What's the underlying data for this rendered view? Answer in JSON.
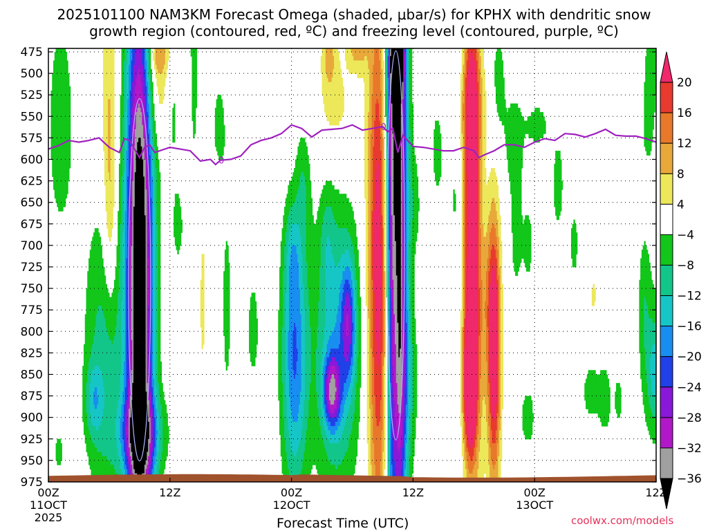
{
  "title_line1": "2025101100 NAM3KM Forecast Omega (shaded, μbar/s) for KPHX with dendritic snow",
  "title_line2": "growth region (contoured, red, ºC) and freezing level (contoured, purple, ºC)",
  "credit": "coolwx.com/models",
  "chart_data": {
    "type": "heatmap",
    "title": "2025101100 NAM3KM Forecast Omega (shaded, μbar/s) for KPHX with dendritic snow growth region (contoured, red, ºC) and freezing level (contoured, purple, ºC)",
    "xlabel": "Forecast Time (UTC)",
    "ylabel": "",
    "x_range_hours": [
      0,
      60
    ],
    "y_range_mb": [
      475,
      975
    ],
    "y_ticks": [
      475,
      500,
      525,
      550,
      575,
      600,
      625,
      650,
      675,
      700,
      725,
      750,
      775,
      800,
      825,
      850,
      875,
      900,
      925,
      950,
      975
    ],
    "x_ticks": [
      {
        "hour": 0,
        "lines": [
          "00Z",
          "11OCT",
          "2025"
        ]
      },
      {
        "hour": 12,
        "lines": [
          "12Z"
        ]
      },
      {
        "hour": 24,
        "lines": [
          "00Z",
          "12OCT"
        ]
      },
      {
        "hour": 36,
        "lines": [
          "12Z"
        ]
      },
      {
        "hour": 48,
        "lines": [
          "00Z",
          "13OCT"
        ]
      },
      {
        "hour": 60,
        "lines": [
          "12Z"
        ]
      }
    ],
    "colorbar": {
      "ticks": [
        "20",
        "16",
        "12",
        "8",
        "4",
        "−4",
        "−8",
        "−12",
        "−16",
        "−20",
        "−24",
        "−28",
        "−32",
        "−36"
      ],
      "bins": [
        {
          "range": [
            20,
            24
          ],
          "color": "#f0286c"
        },
        {
          "range": [
            16,
            20
          ],
          "color": "#e83a2e"
        },
        {
          "range": [
            12,
            16
          ],
          "color": "#e8782a"
        },
        {
          "range": [
            8,
            12
          ],
          "color": "#e8a83a"
        },
        {
          "range": [
            4,
            8
          ],
          "color": "#ece85a"
        },
        {
          "range": [
            -4,
            4
          ],
          "color": "#ffffff"
        },
        {
          "range": [
            -8,
            -4
          ],
          "color": "#12c61a"
        },
        {
          "range": [
            -12,
            -8
          ],
          "color": "#12c68a"
        },
        {
          "range": [
            -16,
            -12
          ],
          "color": "#16c6c6"
        },
        {
          "range": [
            -20,
            -16
          ],
          "color": "#188ef0"
        },
        {
          "range": [
            -24,
            -20
          ],
          "color": "#2040e8"
        },
        {
          "range": [
            -28,
            -24
          ],
          "color": "#8a18d8"
        },
        {
          "range": [
            -32,
            -28
          ],
          "color": "#b018c8"
        },
        {
          "range": [
            -36,
            -32
          ],
          "color": "#a0a0a0"
        },
        {
          "range": [
            -40,
            -36
          ],
          "color": "#000000"
        }
      ]
    },
    "freezing_level_mb": {
      "hours": [
        0,
        1,
        2,
        3,
        4,
        5,
        6,
        7,
        7.5,
        8,
        9,
        9.5,
        10,
        10.5,
        11,
        12,
        13,
        14,
        15,
        16,
        16.5,
        17,
        18,
        19,
        20,
        21,
        22,
        23,
        24,
        25,
        26,
        27,
        28,
        29,
        30,
        31,
        32,
        33,
        33.5,
        34,
        34.5,
        35,
        36,
        37,
        38,
        39,
        40,
        41,
        42,
        42.5,
        43,
        44,
        45,
        46,
        47,
        48,
        49,
        50,
        51,
        52,
        53,
        54,
        55,
        56,
        57,
        58,
        59,
        60
      ],
      "pressure": [
        588,
        584,
        578,
        580,
        578,
        575,
        586,
        592,
        576,
        578,
        598,
        586,
        583,
        592,
        590,
        586,
        588,
        590,
        602,
        600,
        606,
        601,
        600,
        596,
        583,
        578,
        575,
        570,
        560,
        564,
        574,
        566,
        565,
        564,
        560,
        566,
        564,
        562,
        568,
        564,
        592,
        572,
        585,
        586,
        588,
        590,
        590,
        586,
        590,
        598,
        595,
        590,
        583,
        583,
        586,
        580,
        576,
        578,
        570,
        571,
        574,
        570,
        565,
        572,
        573,
        573,
        576,
        580
      ],
      "label": "0",
      "label_hours": [
        17,
        33
      ]
    },
    "omega_features": [
      {
        "center": [
          9,
          740
        ],
        "sx": 0.95,
        "sy": 270,
        "peak": -44
      },
      {
        "center": [
          9.1,
          920
        ],
        "sx": 1.6,
        "sy": 35,
        "peak": -16
      },
      {
        "center": [
          10.8,
          520
        ],
        "sx": 0.9,
        "sy": 45,
        "peak": 9
      },
      {
        "center": [
          10.8,
          475
        ],
        "sx": 0.8,
        "sy": 20,
        "peak": 10
      },
      {
        "center": [
          6,
          560
        ],
        "sx": 0.55,
        "sy": 120,
        "peak": 9
      },
      {
        "center": [
          6.1,
          680
        ],
        "sx": 0.4,
        "sy": 60,
        "peak": 5
      },
      {
        "center": [
          1.2,
          560
        ],
        "sx": 1.1,
        "sy": 110,
        "peak": -6
      },
      {
        "center": [
          5.5,
          830
        ],
        "sx": 1.4,
        "sy": 130,
        "peak": -10
      },
      {
        "center": [
          4.5,
          880
        ],
        "sx": 0.6,
        "sy": 30,
        "peak": -9
      },
      {
        "center": [
          12.2,
          540
        ],
        "sx": 0.6,
        "sy": 60,
        "peak": -6
      },
      {
        "center": [
          12.8,
          680
        ],
        "sx": 0.5,
        "sy": 40,
        "peak": -5
      },
      {
        "center": [
          14.4,
          430
        ],
        "sx": 0.35,
        "sy": 180,
        "peak": -6
      },
      {
        "center": [
          15.2,
          760
        ],
        "sx": 0.45,
        "sy": 130,
        "peak": 4.5
      },
      {
        "center": [
          16.8,
          560
        ],
        "sx": 0.6,
        "sy": 50,
        "peak": -5
      },
      {
        "center": [
          17.6,
          770
        ],
        "sx": 0.45,
        "sy": 110,
        "peak": -5
      },
      {
        "center": [
          20.2,
          800
        ],
        "sx": 0.6,
        "sy": 70,
        "peak": -5
      },
      {
        "center": [
          20.7,
          900
        ],
        "sx": 0.5,
        "sy": 25,
        "peak": 4.5
      },
      {
        "center": [
          25.2,
          630
        ],
        "sx": 0.5,
        "sy": 50,
        "peak": -6
      },
      {
        "center": [
          24.3,
          830
        ],
        "sx": 0.9,
        "sy": 110,
        "peak": -20
      },
      {
        "center": [
          24.1,
          710
        ],
        "sx": 0.55,
        "sy": 40,
        "peak": -6
      },
      {
        "center": [
          28.5,
          820
        ],
        "sx": 1.6,
        "sy": 120,
        "peak": -15
      },
      {
        "center": [
          28.0,
          870
        ],
        "sx": 0.6,
        "sy": 30,
        "peak": -22
      },
      {
        "center": [
          29.6,
          790
        ],
        "sx": 0.5,
        "sy": 50,
        "peak": -17
      },
      {
        "center": [
          27.5,
          690
        ],
        "sx": 0.5,
        "sy": 45,
        "peak": -5
      },
      {
        "center": [
          28.3,
          540
        ],
        "sx": 1.3,
        "sy": 50,
        "peak": 6
      },
      {
        "center": [
          27.7,
          475
        ],
        "sx": 0.5,
        "sy": 30,
        "peak": 8
      },
      {
        "center": [
          30.5,
          470
        ],
        "sx": 0.7,
        "sy": 20,
        "peak": 10
      },
      {
        "center": [
          32.8,
          720
        ],
        "sx": 0.85,
        "sy": 230,
        "peak": 28
      },
      {
        "center": [
          34.1,
          520
        ],
        "sx": 0.7,
        "sy": 50,
        "peak": -6
      },
      {
        "center": [
          33.7,
          640
        ],
        "sx": 0.5,
        "sy": 80,
        "peak": -5
      },
      {
        "center": [
          34.3,
          740
        ],
        "sx": 0.25,
        "sy": 200,
        "peak": 8
      },
      {
        "center": [
          34.3,
          700
        ],
        "sx": 0.75,
        "sy": 290,
        "peak": -48
      },
      {
        "center": [
          34.4,
          480
        ],
        "sx": 0.5,
        "sy": 30,
        "peak": -26
      },
      {
        "center": [
          35.6,
          860
        ],
        "sx": 0.7,
        "sy": 60,
        "peak": -6
      },
      {
        "center": [
          36.2,
          650
        ],
        "sx": 0.4,
        "sy": 40,
        "peak": -5
      },
      {
        "center": [
          38.4,
          590
        ],
        "sx": 0.6,
        "sy": 60,
        "peak": -5
      },
      {
        "center": [
          40.3,
          640
        ],
        "sx": 0.6,
        "sy": 230,
        "peak": -5
      },
      {
        "center": [
          41.8,
          630
        ],
        "sx": 0.6,
        "sy": 190,
        "peak": 26
      },
      {
        "center": [
          41.6,
          540
        ],
        "sx": 1.2,
        "sy": 40,
        "peak": 6
      },
      {
        "center": [
          44.4,
          510
        ],
        "sx": 0.5,
        "sy": 50,
        "peak": -6
      },
      {
        "center": [
          43.4,
          750
        ],
        "sx": 0.5,
        "sy": 60,
        "peak": 4.5
      },
      {
        "center": [
          44.0,
          820
        ],
        "sx": 0.45,
        "sy": 110,
        "peak": 26
      },
      {
        "center": [
          41.6,
          860
        ],
        "sx": 0.4,
        "sy": 50,
        "peak": 26
      },
      {
        "center": [
          42.0,
          840
        ],
        "sx": 0.9,
        "sy": 110,
        "peak": 8
      },
      {
        "center": [
          46.0,
          580
        ],
        "sx": 0.8,
        "sy": 50,
        "peak": -6
      },
      {
        "center": [
          46.2,
          700
        ],
        "sx": 0.5,
        "sy": 50,
        "peak": -5
      },
      {
        "center": [
          47.4,
          700
        ],
        "sx": 0.4,
        "sy": 40,
        "peak": -5
      },
      {
        "center": [
          48.3,
          560
        ],
        "sx": 0.8,
        "sy": 20,
        "peak": -6
      },
      {
        "center": [
          47.3,
          900
        ],
        "sx": 0.8,
        "sy": 40,
        "peak": -5
      },
      {
        "center": [
          50.3,
          630
        ],
        "sx": 0.6,
        "sy": 60,
        "peak": -5
      },
      {
        "center": [
          51.9,
          700
        ],
        "sx": 0.4,
        "sy": 40,
        "peak": -5
      },
      {
        "center": [
          53.6,
          870
        ],
        "sx": 1.0,
        "sy": 40,
        "peak": -5
      },
      {
        "center": [
          53.8,
          760
        ],
        "sx": 0.45,
        "sy": 30,
        "peak": 4.5
      },
      {
        "center": [
          55.0,
          880
        ],
        "sx": 0.4,
        "sy": 30,
        "peak": -5
      },
      {
        "center": [
          56.3,
          880
        ],
        "sx": 0.4,
        "sy": 30,
        "peak": -5
      },
      {
        "center": [
          59.6,
          475
        ],
        "sx": 0.5,
        "sy": 40,
        "peak": -6
      },
      {
        "center": [
          59.2,
          560
        ],
        "sx": 0.6,
        "sy": 50,
        "peak": -5
      },
      {
        "center": [
          59.6,
          830
        ],
        "sx": 0.9,
        "sy": 80,
        "peak": -6
      },
      {
        "center": [
          59.9,
          850
        ],
        "sx": 0.5,
        "sy": 40,
        "peak": -9
      },
      {
        "center": [
          58.8,
          760
        ],
        "sx": 0.4,
        "sy": 60,
        "peak": -5
      },
      {
        "center": [
          1.0,
          940
        ],
        "sx": 0.5,
        "sy": 20,
        "peak": -5
      }
    ],
    "dgz_contour_hours": [
      {
        "center": [
          9,
          740
        ],
        "extent": "vertical"
      },
      {
        "center": [
          34.3,
          700
        ],
        "extent": "vertical"
      }
    ]
  }
}
